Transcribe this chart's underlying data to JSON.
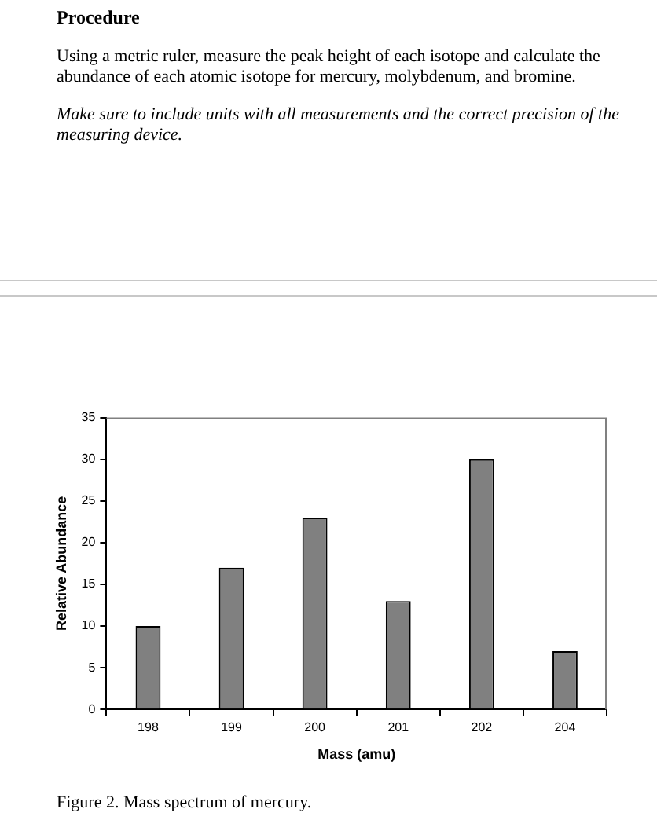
{
  "chart_data": {
    "type": "bar",
    "xlabel": "Mass (amu)",
    "ylabel": "Relative Abundance",
    "categories": [
      "198",
      "199",
      "200",
      "201",
      "202",
      "204"
    ],
    "values": [
      10,
      17,
      23,
      13,
      30,
      7
    ],
    "color": "#808080",
    "ylim": [
      0,
      35
    ],
    "yticks": [
      0,
      5,
      10,
      15,
      20,
      25,
      30,
      35
    ],
    "grid": false,
    "legend": false,
    "annotations": [
      "Procedure",
      "Using a metric ruler, measure the peak height of each isotope and calculate the abundance of each atomic isotope for mercury, molybdenum, and bromine.",
      "Make sure to include units with all measurements and the correct precision of the measuring device.",
      "Figure 2. Mass spectrum of mercury."
    ]
  }
}
